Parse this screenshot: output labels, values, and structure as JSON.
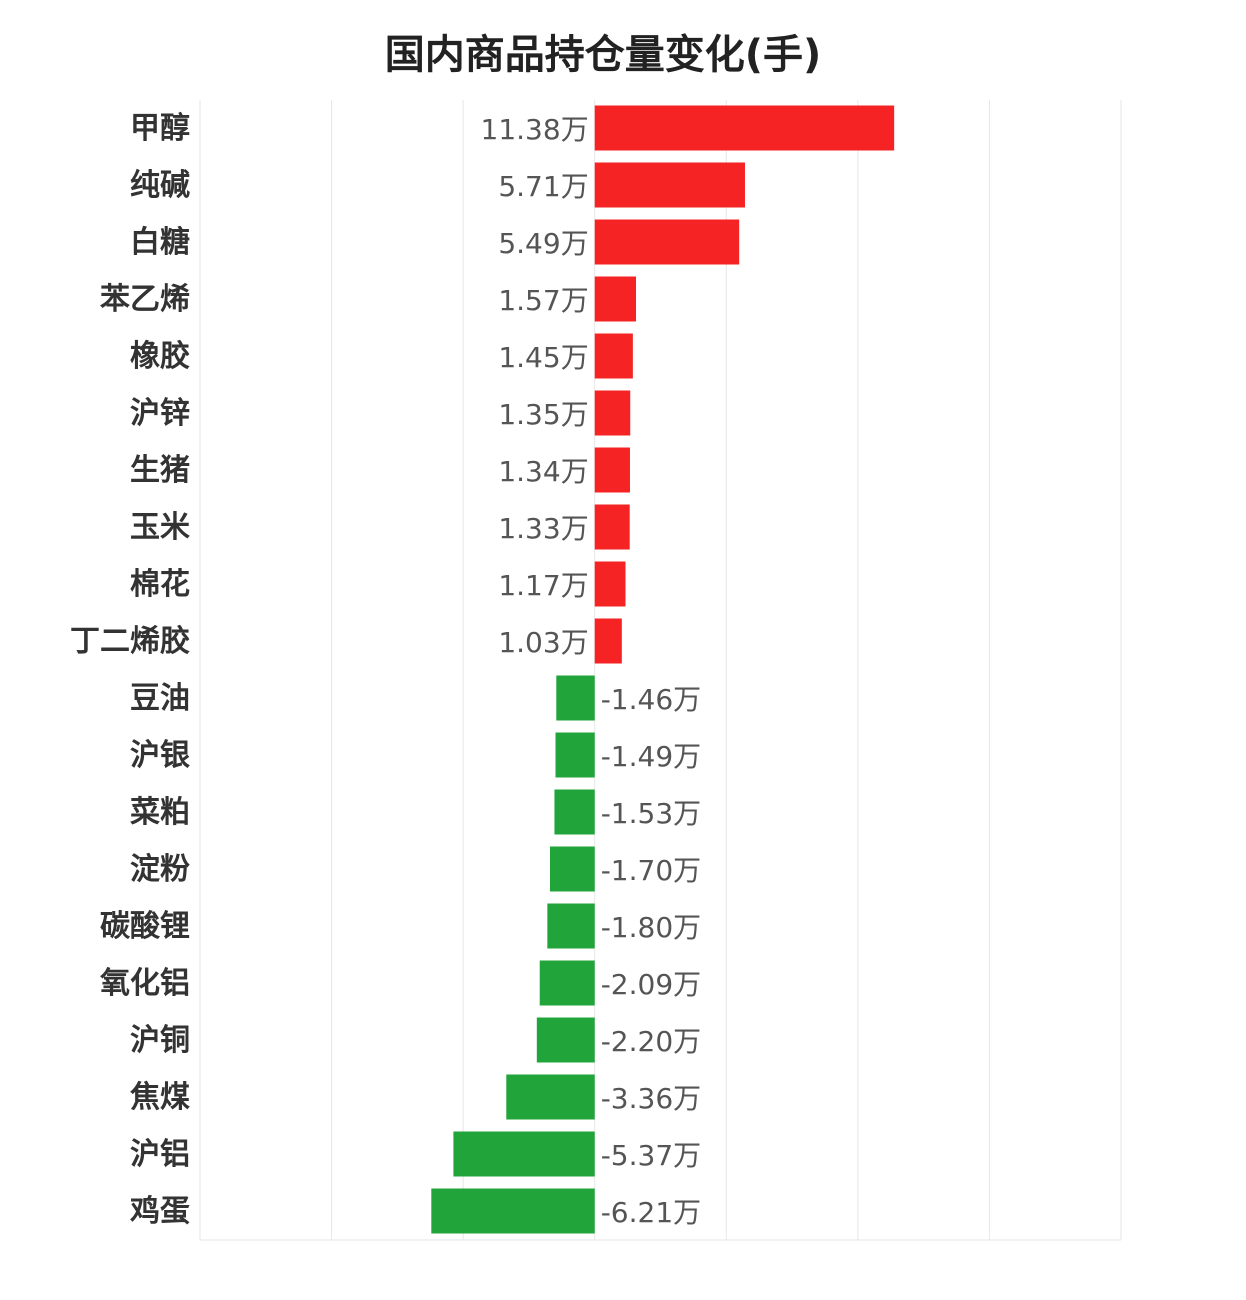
{
  "chart_data": {
    "type": "bar",
    "orientation": "horizontal",
    "title": "国内商品持仓量变化(手)",
    "xlabel": "",
    "ylabel": "",
    "unit": "万",
    "grid": true,
    "xlim": [
      -15,
      20
    ],
    "colors": {
      "positive": "#f52323",
      "negative": "#21a43a"
    },
    "categories": [
      "甲醇",
      "纯碱",
      "白糖",
      "苯乙烯",
      "橡胶",
      "沪锌",
      "生猪",
      "玉米",
      "棉花",
      "丁二烯胶",
      "豆油",
      "沪银",
      "菜粕",
      "淀粉",
      "碳酸锂",
      "氧化铝",
      "沪铜",
      "焦煤",
      "沪铝",
      "鸡蛋"
    ],
    "values": [
      11.38,
      5.71,
      5.49,
      1.57,
      1.45,
      1.35,
      1.34,
      1.33,
      1.17,
      1.03,
      -1.46,
      -1.49,
      -1.53,
      -1.7,
      -1.8,
      -2.09,
      -2.2,
      -3.36,
      -5.37,
      -6.21
    ],
    "value_labels": [
      "11.38万",
      "5.71万",
      "5.49万",
      "1.57万",
      "1.45万",
      "1.35万",
      "1.34万",
      "1.33万",
      "1.17万",
      "1.03万",
      "-1.46万",
      "-1.49万",
      "-1.53万",
      "-1.70万",
      "-1.80万",
      "-2.09万",
      "-2.20万",
      "-3.36万",
      "-5.37万",
      "-6.21万"
    ]
  }
}
